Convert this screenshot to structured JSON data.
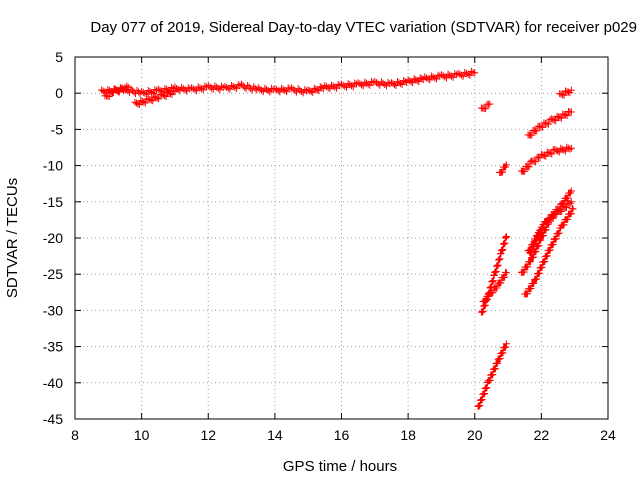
{
  "chart_data": {
    "type": "scatter",
    "title": "Day 077 of 2019, Sidereal Day-to-day VTEC variation (SDTVAR) for receiver p029",
    "xlabel": "GPS time / hours",
    "ylabel": "SDTVAR / TECUs",
    "xlim": [
      8,
      24
    ],
    "ylim": [
      -45,
      5
    ],
    "xticks": [
      8,
      10,
      12,
      14,
      16,
      18,
      20,
      22,
      24
    ],
    "yticks": [
      5,
      0,
      -5,
      -10,
      -15,
      -20,
      -25,
      -30,
      -35,
      -40,
      -45
    ],
    "grid": true,
    "marker": "plus",
    "color": "#ff0000",
    "series": [
      {
        "segments": [
          {
            "x": [
              8.8,
              9.5,
              10.0,
              10.5,
              11.0,
              11.5,
              12.0,
              12.5,
              13.0,
              13.5,
              14.0,
              14.5,
              15.0,
              15.5,
              16.0,
              16.5,
              17.0,
              17.5,
              18.0,
              18.5,
              19.0,
              19.5,
              20.0
            ],
            "y": [
              0.2,
              0.5,
              0.0,
              0.3,
              0.6,
              0.5,
              0.8,
              0.7,
              1.0,
              0.5,
              0.4,
              0.5,
              0.2,
              0.8,
              1.0,
              1.2,
              1.4,
              1.2,
              1.6,
              2.0,
              2.3,
              2.5,
              2.8
            ]
          },
          {
            "x": [
              9.8,
              10.2,
              10.6,
              11.0
            ],
            "y": [
              -1.5,
              -1.0,
              -0.4,
              0.2
            ]
          },
          {
            "x": [
              8.9,
              9.2,
              9.6
            ],
            "y": [
              -0.6,
              0.3,
              0.8
            ]
          },
          {
            "x": [
              20.2,
              20.45
            ],
            "y": [
              -2.3,
              -1.5
            ]
          },
          {
            "x": [
              20.75,
              20.95
            ],
            "y": [
              -11.2,
              -9.9
            ]
          },
          {
            "x": [
              21.4,
              21.7,
              22.0,
              22.4,
              22.9
            ],
            "y": [
              -11.0,
              -9.6,
              -8.7,
              -8.0,
              -7.6
            ]
          },
          {
            "x": [
              21.6,
              21.9,
              22.3,
              22.9
            ],
            "y": [
              -6.0,
              -4.8,
              -3.8,
              -2.6
            ]
          },
          {
            "x": [
              22.55,
              22.9
            ],
            "y": [
              -0.3,
              0.4
            ]
          },
          {
            "x": [
              20.2,
              20.4,
              20.6,
              20.8,
              20.95
            ],
            "y": [
              -30.5,
              -28.0,
              -25.0,
              -22.0,
              -19.8
            ]
          },
          {
            "x": [
              20.25,
              20.45,
              20.7,
              20.95
            ],
            "y": [
              -29.0,
              -27.8,
              -26.5,
              -24.8
            ]
          },
          {
            "x": [
              20.1,
              20.4,
              20.7,
              20.95
            ],
            "y": [
              -43.5,
              -40.0,
              -37.0,
              -34.6
            ]
          },
          {
            "x": [
              21.4,
              21.7,
              22.0,
              22.3,
              22.6,
              22.9
            ],
            "y": [
              -25.0,
              -23.0,
              -20.0,
              -17.0,
              -15.5,
              -13.5
            ]
          },
          {
            "x": [
              21.5,
              21.8,
              22.2,
              22.6,
              22.95
            ],
            "y": [
              -28.0,
              -26.0,
              -22.0,
              -18.5,
              -16.0
            ]
          },
          {
            "x": [
              21.6,
              21.85,
              22.1,
              22.5,
              22.9
            ],
            "y": [
              -22.0,
              -20.0,
              -18.0,
              -16.5,
              -15.0
            ]
          },
          {
            "x": [
              21.65,
              21.9,
              22.2
            ],
            "y": [
              -22.3,
              -19.5,
              -17.3
            ]
          }
        ]
      }
    ]
  }
}
